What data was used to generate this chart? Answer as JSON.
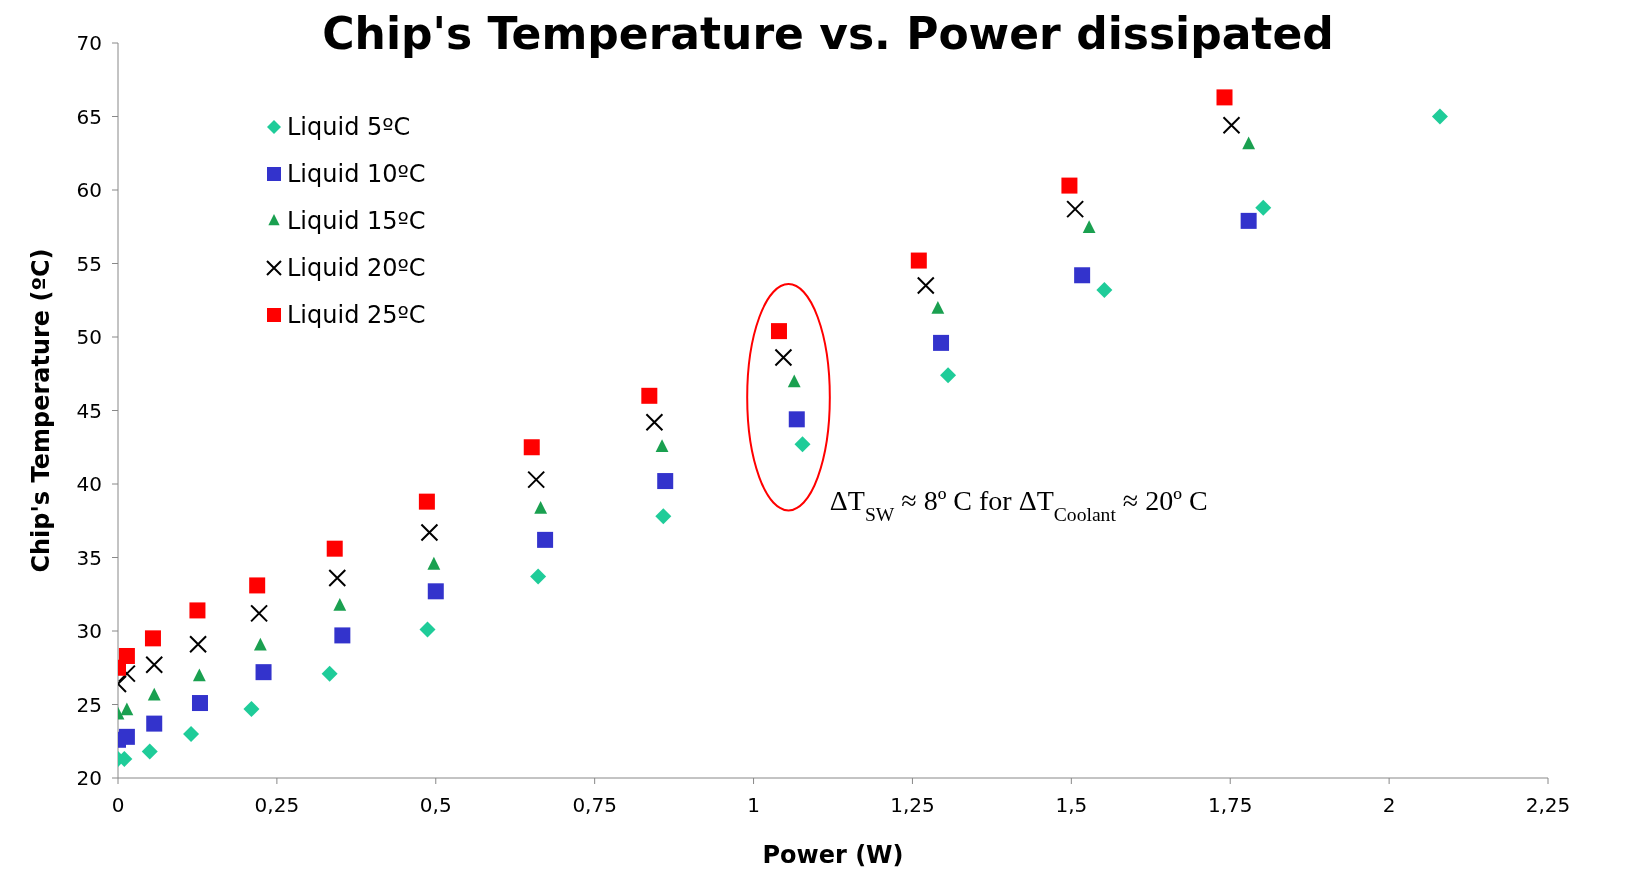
{
  "chart_data": {
    "type": "scatter",
    "title": "Chip's Temperature vs. Power dissipated",
    "xlabel": "Power (W)",
    "ylabel": "Chip's Temperature (ºC)",
    "annotations": [
      "ΔT$_{SW}$ ≈ 8º C for ΔT$_{Coolant}$ ≈ 20º C"
    ],
    "xlim": [
      0,
      2.25
    ],
    "xticks": [
      0,
      {
        "value": 0.25,
        "label": "0,25"
      },
      {
        "value": 0.5,
        "label": "0,5"
      },
      {
        "value": 0.75,
        "label": "0,75"
      },
      1,
      {
        "value": 1.25,
        "label": "1,25"
      },
      {
        "value": 1.5,
        "label": "1,5"
      },
      {
        "value": 1.75,
        "label": "1,75"
      },
      2,
      {
        "value": 2.25,
        "label": "2,25"
      }
    ],
    "ylim": [
      20,
      70
    ],
    "yticks": [
      20,
      25,
      30,
      35,
      40,
      45,
      50,
      55,
      60,
      65,
      70
    ],
    "grid": false,
    "legend": "top left",
    "series": [
      {
        "name": "Liquid 5ºC",
        "color": "#1fcc99",
        "marker": "diamond",
        "x": [
          0,
          0.01,
          0.05,
          0.115,
          0.21,
          0.333,
          0.487,
          0.661,
          0.858,
          1.077,
          1.306,
          1.552,
          1.802,
          2.08
        ],
        "values": [
          21.3,
          21.3,
          21.8,
          23.0,
          24.7,
          27.1,
          30.1,
          33.7,
          37.8,
          42.7,
          47.4,
          53.2,
          58.8,
          65.0
        ]
      },
      {
        "name": "Liquid 10ºC",
        "color": "#3333cc",
        "marker": "square",
        "x": [
          0,
          0.014,
          0.057,
          0.129,
          0.229,
          0.353,
          0.5,
          0.672,
          0.861,
          1.068,
          1.295,
          1.517,
          1.779
        ],
        "values": [
          22.6,
          22.8,
          23.7,
          25.1,
          27.2,
          29.7,
          32.7,
          36.2,
          40.2,
          44.4,
          49.6,
          54.2,
          57.9
        ]
      },
      {
        "name": "Liquid 15ºC",
        "color": "#1aa050",
        "marker": "triangle",
        "x": [
          0,
          0.014,
          0.057,
          0.128,
          0.224,
          0.349,
          0.497,
          0.665,
          0.856,
          1.064,
          1.29,
          1.528,
          1.779
        ],
        "values": [
          24.3,
          24.6,
          25.6,
          26.9,
          29.0,
          31.7,
          34.5,
          38.3,
          42.5,
          46.9,
          51.9,
          57.4,
          63.1
        ]
      },
      {
        "name": "Liquid 20ºC",
        "color": "#000000",
        "marker": "cross",
        "x": [
          0,
          0.014,
          0.057,
          0.126,
          0.222,
          0.345,
          0.49,
          0.658,
          0.844,
          1.047,
          1.271,
          1.506,
          1.752
        ],
        "values": [
          26.4,
          27.1,
          27.7,
          29.1,
          31.2,
          33.6,
          36.7,
          40.3,
          44.2,
          48.6,
          53.5,
          58.7,
          64.4
        ]
      },
      {
        "name": "Liquid 25ºC",
        "color": "#ff0000",
        "marker": "square",
        "x": [
          0,
          0.014,
          0.055,
          0.125,
          0.219,
          0.341,
          0.486,
          0.651,
          0.836,
          1.04,
          1.26,
          1.497,
          1.741
        ],
        "values": [
          27.5,
          28.3,
          29.5,
          31.4,
          33.1,
          35.6,
          38.8,
          42.5,
          46.0,
          50.4,
          55.2,
          60.3,
          66.3
        ]
      }
    ]
  }
}
